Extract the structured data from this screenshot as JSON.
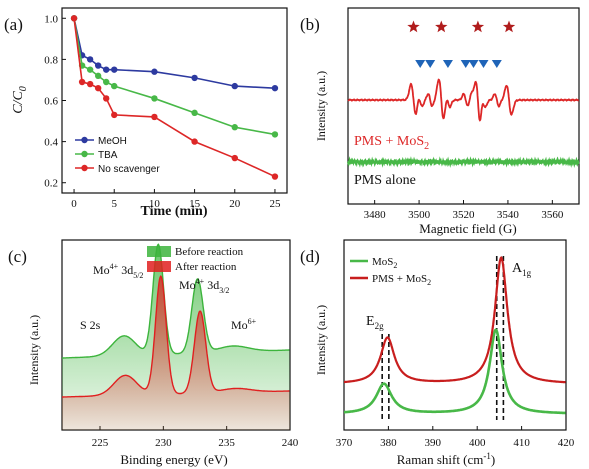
{
  "chart_data": [
    {
      "panel_label": "(a)",
      "type": "line",
      "xlabel": "Time (min)",
      "ylabel_main": "C/C",
      "ylabel_sub": "0",
      "xlim": [
        -1.5,
        26.5
      ],
      "ylim": [
        0.15,
        1.05
      ],
      "x_ticks": [
        0,
        5,
        10,
        15,
        20,
        25
      ],
      "y_ticks": [
        0.2,
        0.4,
        0.6,
        0.8,
        1.0
      ],
      "y_tick_labels": [
        "0.2",
        "0.4",
        "0.6",
        "0.8",
        "1.0"
      ],
      "legend_position": "lower-left",
      "x": [
        0,
        1,
        2,
        3,
        4,
        5,
        10,
        15,
        20,
        25
      ],
      "series": [
        {
          "name": "MeOH",
          "color": "#2d3aa0",
          "values": [
            1.0,
            0.82,
            0.8,
            0.77,
            0.75,
            0.75,
            0.74,
            0.71,
            0.67,
            0.66
          ]
        },
        {
          "name": "TBA",
          "color": "#48b848",
          "values": [
            1.0,
            0.77,
            0.75,
            0.72,
            0.69,
            0.67,
            0.61,
            0.54,
            0.47,
            0.435
          ]
        },
        {
          "name": "No scavenger",
          "color": "#dd2727",
          "values": [
            1.0,
            0.69,
            0.68,
            0.66,
            0.61,
            0.53,
            0.52,
            0.4,
            0.32,
            0.23
          ]
        }
      ]
    },
    {
      "panel_label": "(b)",
      "type": "line",
      "xlabel": "Magnetic field (G)",
      "ylabel": "Intensity (a.u.)",
      "xlim": [
        3468,
        3572
      ],
      "x_ticks": [
        3480,
        3500,
        3520,
        3540,
        3560
      ],
      "series": [
        {
          "name": "PMS + MoS",
          "name_sub": "2",
          "color": "#dd2727"
        },
        {
          "name": "PMS alone",
          "color": "#48b848"
        }
      ],
      "star_markers_x": [
        3497.5,
        3510,
        3526.5,
        3540.5
      ],
      "triangle_markers_x": [
        3500.5,
        3505,
        3513,
        3521,
        3524.5,
        3529,
        3535
      ],
      "star_color": "#b01c1c",
      "triangle_color": "#1f64b8"
    },
    {
      "panel_label": "(c)",
      "type": "area",
      "xlabel": "Binding energy (eV)",
      "ylabel": "Intensity (a.u.)",
      "xlim": [
        222,
        240
      ],
      "x_ticks": [
        225,
        230,
        235,
        240
      ],
      "legend_position": "top-center",
      "series": [
        {
          "name": "Before reaction",
          "color": "#3cb43c"
        },
        {
          "name": "After reaction",
          "color": "#e02020"
        }
      ],
      "annotations": [
        {
          "main": "S 2s",
          "sup": "",
          "sub": ""
        },
        {
          "main": "Mo",
          "sup": "4+",
          "rest": " 3d",
          "sub": "5/2"
        },
        {
          "main": "Mo",
          "sup": "4+",
          "rest": " 3d",
          "sub": "3/2"
        },
        {
          "main": "Mo",
          "sup": "6+",
          "rest": "",
          "sub": ""
        }
      ]
    },
    {
      "panel_label": "(d)",
      "type": "line",
      "xlabel": "Raman shift (cm",
      "xlabel_sup": "-1",
      "xlabel_end": ")",
      "ylabel": "Intensity (a.u.)",
      "xlim": [
        370,
        420
      ],
      "x_ticks": [
        370,
        380,
        390,
        400,
        410,
        420
      ],
      "legend_position": "top-left",
      "series": [
        {
          "name": "MoS",
          "name_sub": "2",
          "color": "#48b848"
        },
        {
          "name": "PMS + MoS",
          "name_sub": "2",
          "color": "#c81e1e"
        }
      ],
      "peak_labels": [
        {
          "main": "E",
          "sub": "2g"
        },
        {
          "main": "A",
          "sub": "1g"
        }
      ],
      "dashed_lines_x": [
        378.6,
        380.1,
        404.4,
        405.9
      ]
    }
  ]
}
